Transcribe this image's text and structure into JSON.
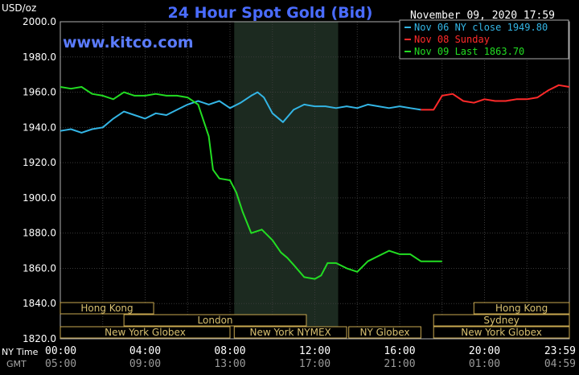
{
  "header": {
    "title": "24 Hour Spot Gold (Bid)",
    "unit": "USD/oz",
    "date": "November 09, 2020 17:59",
    "site": "www.kitco.com"
  },
  "legend": [
    {
      "label": "Nov 06 NY close 1949.80",
      "color": "#33b5e5"
    },
    {
      "label": "Nov 08 Sunday",
      "color": "#ff2a2a"
    },
    {
      "label": "Nov 09 Last 1863.70",
      "color": "#22dd22"
    }
  ],
  "time_labels": {
    "ny_label": "NY Time",
    "gmt_label": "GMT",
    "ny": [
      "00:00",
      "04:00",
      "08:00",
      "12:00",
      "16:00",
      "20:00",
      "23:59"
    ],
    "gmt": [
      "05:00",
      "09:00",
      "13:00",
      "17:00",
      "21:00",
      "01:00",
      "04:59"
    ]
  },
  "sessions": [
    {
      "label": "Hong Kong",
      "row": 0,
      "start": 0,
      "end": 4.4
    },
    {
      "label": "London",
      "row": 1,
      "start": 3.0,
      "end": 11.6
    },
    {
      "label": "New York Globex",
      "row": 2,
      "start": 0,
      "end": 8.0
    },
    {
      "label": "New York NYMEX",
      "row": 2,
      "start": 8.2,
      "end": 13.5
    },
    {
      "label": "NY Globex",
      "row": 2,
      "start": 13.6,
      "end": 17.0
    },
    {
      "label": "Hong Kong",
      "row": 0,
      "start": 19.5,
      "end": 24
    },
    {
      "label": "Sydney",
      "row": 1,
      "start": 17.6,
      "end": 24
    },
    {
      "label": "New York Globex",
      "row": 2,
      "start": 17.6,
      "end": 24
    }
  ],
  "chart_data": {
    "type": "line",
    "title": "24 Hour Spot Gold (Bid)",
    "ylabel": "USD/oz",
    "xlabel": "NY Time",
    "xlim": [
      0,
      24
    ],
    "ylim": [
      1820,
      2000
    ],
    "yticks": [
      "1820.0",
      "1840.0",
      "1860.0",
      "1880.0",
      "1900.0",
      "1920.0",
      "1940.0",
      "1960.0",
      "1980.0",
      "2000.0"
    ],
    "shaded_range": [
      8.2,
      13.1
    ],
    "grid": true,
    "series": [
      {
        "name": "Nov 06 NY close 1949.80",
        "color": "#33b5e5",
        "points": [
          [
            0,
            1938
          ],
          [
            0.5,
            1939
          ],
          [
            1,
            1937
          ],
          [
            1.5,
            1939
          ],
          [
            2,
            1940
          ],
          [
            2.5,
            1945
          ],
          [
            3,
            1949
          ],
          [
            3.5,
            1947
          ],
          [
            4,
            1945
          ],
          [
            4.5,
            1948
          ],
          [
            5,
            1947
          ],
          [
            5.5,
            1950
          ],
          [
            6,
            1953
          ],
          [
            6.5,
            1955
          ],
          [
            7,
            1953
          ],
          [
            7.5,
            1955
          ],
          [
            8,
            1951
          ],
          [
            8.5,
            1954
          ],
          [
            9,
            1958
          ],
          [
            9.3,
            1960
          ],
          [
            9.6,
            1957
          ],
          [
            10,
            1948
          ],
          [
            10.5,
            1943
          ],
          [
            11,
            1950
          ],
          [
            11.5,
            1953
          ],
          [
            12,
            1952
          ],
          [
            12.5,
            1952
          ],
          [
            13,
            1951
          ],
          [
            13.5,
            1952
          ],
          [
            14,
            1951
          ],
          [
            14.5,
            1953
          ],
          [
            15,
            1952
          ],
          [
            15.5,
            1951
          ],
          [
            16,
            1952
          ],
          [
            16.5,
            1951
          ],
          [
            17,
            1950
          ]
        ]
      },
      {
        "name": "Nov 08 Sunday",
        "color": "#ff2a2a",
        "points": [
          [
            17,
            1950
          ],
          [
            17.6,
            1950
          ],
          [
            18,
            1958
          ],
          [
            18.5,
            1959
          ],
          [
            19,
            1955
          ],
          [
            19.5,
            1954
          ],
          [
            20,
            1956
          ],
          [
            20.5,
            1955
          ],
          [
            21,
            1955
          ],
          [
            21.5,
            1956
          ],
          [
            22,
            1956
          ],
          [
            22.5,
            1957
          ],
          [
            23,
            1961
          ],
          [
            23.5,
            1964
          ],
          [
            24,
            1963
          ]
        ]
      },
      {
        "name": "Nov 09 Last 1863.70",
        "color": "#22dd22",
        "points": [
          [
            0,
            1963
          ],
          [
            0.5,
            1962
          ],
          [
            1,
            1963
          ],
          [
            1.5,
            1959
          ],
          [
            2,
            1958
          ],
          [
            2.5,
            1956
          ],
          [
            3,
            1960
          ],
          [
            3.5,
            1958
          ],
          [
            4,
            1958
          ],
          [
            4.5,
            1959
          ],
          [
            5,
            1958
          ],
          [
            5.5,
            1958
          ],
          [
            6,
            1957
          ],
          [
            6.5,
            1953
          ],
          [
            7,
            1935
          ],
          [
            7.2,
            1916
          ],
          [
            7.5,
            1911
          ],
          [
            8,
            1910
          ],
          [
            8.3,
            1903
          ],
          [
            8.6,
            1892
          ],
          [
            9,
            1880
          ],
          [
            9.5,
            1882
          ],
          [
            10,
            1876
          ],
          [
            10.4,
            1869
          ],
          [
            10.7,
            1866
          ],
          [
            11,
            1862
          ],
          [
            11.5,
            1855
          ],
          [
            12,
            1854
          ],
          [
            12.3,
            1856
          ],
          [
            12.6,
            1863
          ],
          [
            13,
            1863
          ],
          [
            13.5,
            1860
          ],
          [
            14,
            1858
          ],
          [
            14.5,
            1864
          ],
          [
            15,
            1867
          ],
          [
            15.5,
            1870
          ],
          [
            16,
            1868
          ],
          [
            16.5,
            1868
          ],
          [
            17,
            1864
          ],
          [
            18,
            1864
          ]
        ]
      }
    ]
  }
}
